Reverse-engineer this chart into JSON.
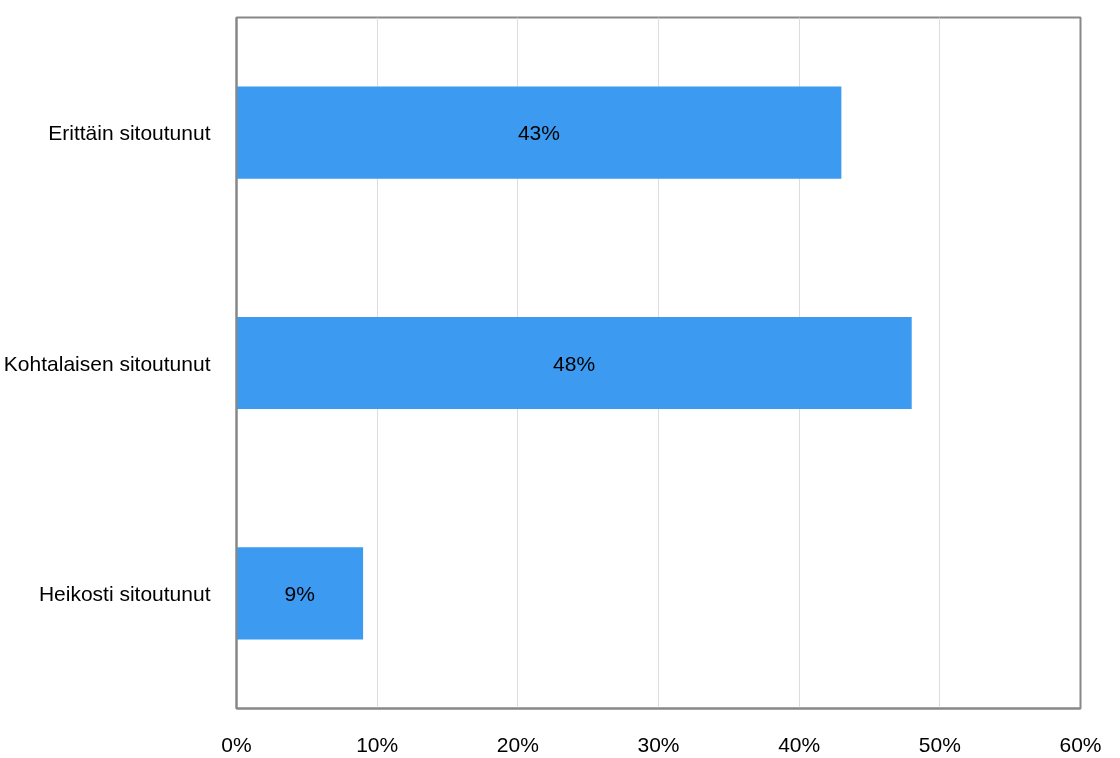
{
  "chart_data": {
    "type": "bar",
    "orientation": "horizontal",
    "categories": [
      "Erittäin sitoutunut",
      "Kohtalaisen sitoutunut",
      "Heikosti sitoutunut"
    ],
    "series": [
      {
        "color": "#3c9af0",
        "values": [
          43,
          48,
          9
        ],
        "value_labels": [
          "43%",
          "48%",
          "9%"
        ]
      }
    ],
    "xlim": [
      0,
      60
    ],
    "xticks": [
      {
        "value": 0,
        "label": "0%"
      },
      {
        "value": 10,
        "label": "10%"
      },
      {
        "value": 20,
        "label": "20%"
      },
      {
        "value": 30,
        "label": "30%"
      },
      {
        "value": 40,
        "label": "40%"
      },
      {
        "value": 50,
        "label": "50%"
      },
      {
        "value": 60,
        "label": "60%"
      }
    ],
    "grid": "x"
  }
}
